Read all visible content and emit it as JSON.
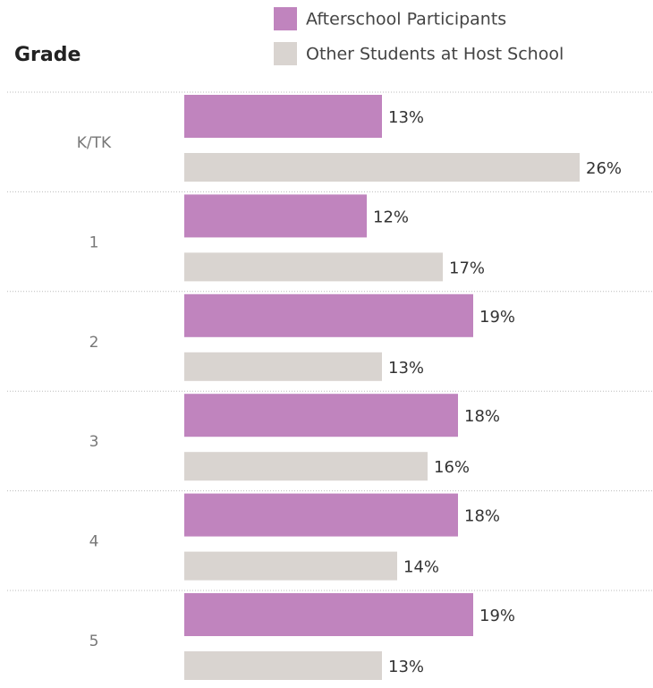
{
  "chart_data": {
    "type": "bar",
    "orientation": "horizontal",
    "y_axis_label": "Grade",
    "categories": [
      "K/TK",
      "1",
      "2",
      "3",
      "4",
      "5"
    ],
    "series": [
      {
        "name": "Afterschool Participants",
        "color": "#c084be",
        "values": [
          13,
          12,
          19,
          18,
          18,
          19
        ],
        "value_labels": [
          "13%",
          "12%",
          "19%",
          "18%",
          "18%",
          "19%"
        ]
      },
      {
        "name": "Other Students at Host School",
        "color": "#d9d4d0",
        "values": [
          26,
          17,
          13,
          16,
          14,
          13
        ],
        "value_labels": [
          "26%",
          "17%",
          "13%",
          "16%",
          "14%",
          "13%"
        ]
      }
    ],
    "legend": "top"
  }
}
